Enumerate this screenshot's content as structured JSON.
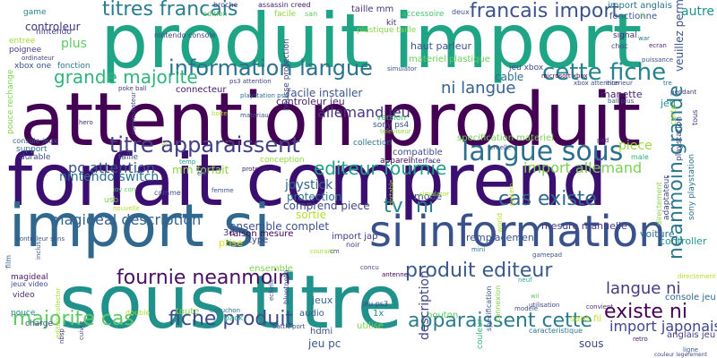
{
  "words": [
    {
      "text": "produit import",
      "color": "#20a486"
    },
    {
      "text": "attention produit",
      "color": "#440154"
    },
    {
      "text": "forfait comprend",
      "color": "#3b0f70"
    },
    {
      "text": "import si",
      "color": "#31688e"
    },
    {
      "text": "sous titre",
      "color": "#21918c"
    },
    {
      "text": "si information",
      "color": "#3a528b"
    },
    {
      "text": "information langue",
      "color": "#2c728e"
    },
    {
      "text": "titres francais",
      "color": "#287d8e"
    },
    {
      "text": "francais import",
      "color": "#3b528b"
    },
    {
      "text": "langue sous",
      "color": "#2e6e8e"
    },
    {
      "text": "titre apparaissent",
      "color": "#424086"
    },
    {
      "text": "cette fiche",
      "color": "#25838e"
    },
    {
      "text": "grande majorite",
      "color": "#2fb47c"
    },
    {
      "text": "ni langue",
      "color": "#355f8d"
    },
    {
      "text": "editeur fournie",
      "color": "#1fa088"
    },
    {
      "text": "neanmoin grande",
      "color": "#2a788e"
    },
    {
      "text": "allemand jeu",
      "color": "#46337e"
    },
    {
      "text": "fiche produit",
      "color": "#3e4989"
    },
    {
      "text": "majorite cas",
      "color": "#5ec962"
    },
    {
      "text": "apparaissent cette",
      "color": "#2a7b8e"
    },
    {
      "text": "produit editeur",
      "color": "#38598c"
    },
    {
      "text": "fournie neanmoin",
      "color": "#471063"
    },
    {
      "text": "cas existe",
      "color": "#31688e"
    },
    {
      "text": "existe ni",
      "color": "#440154"
    },
    {
      "text": "langue ni",
      "color": "#443983"
    },
    {
      "text": "import allemand",
      "color": "#7ad151"
    },
    {
      "text": "import japonais",
      "color": "#3f4788"
    },
    {
      "text": "magideal description",
      "color": "#33638d"
    },
    {
      "text": "pc attention",
      "color": "#3b528b"
    },
    {
      "text": "nintendo switch",
      "color": "#2d708e"
    },
    {
      "text": "mm forfait",
      "color": "#8fd744"
    },
    {
      "text": "joystick",
      "color": "#31688e"
    },
    {
      "text": "protection",
      "color": "#2c728e"
    },
    {
      "text": "comprend piece",
      "color": "#3e4a89"
    },
    {
      "text": "sortie",
      "color": "#b5de2b"
    },
    {
      "text": "ensemble complet",
      "color": "#3b528b"
    },
    {
      "text": "import jap",
      "color": "#453781"
    },
    {
      "text": "controleur",
      "color": "#46327e"
    },
    {
      "text": "nintendo",
      "color": "#414487"
    },
    {
      "text": "plus",
      "color": "#5ec962"
    },
    {
      "text": "entree",
      "color": "#a0da39"
    },
    {
      "text": "poignee",
      "color": "#443983"
    },
    {
      "text": "xbox one",
      "color": "#3a538b"
    },
    {
      "text": "fonction",
      "color": "#2a788e"
    },
    {
      "text": "cable",
      "color": "#2e6f8e"
    },
    {
      "text": "jeu xbox",
      "color": "#3f4889"
    },
    {
      "text": "connecteur",
      "color": "#481769"
    },
    {
      "text": "facile installer",
      "color": "#39568c"
    },
    {
      "text": "materiel plastique",
      "color": "#6ccd5a"
    },
    {
      "text": "haut parleur",
      "color": "#3a548c"
    },
    {
      "text": "plastique taille",
      "color": "#86d549"
    },
    {
      "text": "kit",
      "color": "#472c7a"
    },
    {
      "text": "taille mm",
      "color": "#46317e"
    },
    {
      "text": "assassin creed",
      "color": "#481b6d"
    },
    {
      "text": "accessoire",
      "color": "#4ac16d"
    },
    {
      "text": "facile",
      "color": "#8bd646"
    },
    {
      "text": "san",
      "color": "#5cc863"
    },
    {
      "text": "edition",
      "color": "#56c667"
    },
    {
      "text": "broche",
      "color": "#404588"
    },
    {
      "text": "game",
      "color": "#25848e"
    },
    {
      "text": "import anglais",
      "color": "#2c728e"
    },
    {
      "text": "fonctionne",
      "color": "#3b528b"
    },
    {
      "text": "jeu",
      "color": "#21908d"
    },
    {
      "text": "manette",
      "color": "#482475"
    },
    {
      "text": "piece",
      "color": "#9bd93c"
    },
    {
      "text": "specification materiel",
      "color": "#75d054"
    },
    {
      "text": "compatible",
      "color": "#3e4c8a"
    },
    {
      "text": "collection",
      "color": "#2e6f8e"
    },
    {
      "text": "version",
      "color": "#3fbc73"
    },
    {
      "text": "sony ps4",
      "color": "#3b528b"
    },
    {
      "text": "appareil",
      "color": "#440154"
    },
    {
      "text": "interface",
      "color": "#472d7b"
    },
    {
      "text": "taille",
      "color": "#3a548c"
    },
    {
      "text": "conception",
      "color": "#90d743"
    },
    {
      "text": "durable",
      "color": "#3f4889"
    },
    {
      "text": "support",
      "color": "#2a768e"
    },
    {
      "text": "console jeux",
      "color": "#365d8d"
    },
    {
      "text": "mesure manuelle",
      "color": "#453882"
    },
    {
      "text": "voiture",
      "color": "#2c718e"
    },
    {
      "text": "controller",
      "color": "#1f9a8a"
    },
    {
      "text": "remplacement",
      "color": "#3b528b"
    },
    {
      "text": "raison mesure",
      "color": "#440154"
    },
    {
      "text": "ensemble",
      "color": "#7fd34e"
    },
    {
      "text": "prise",
      "color": "#d8e219"
    },
    {
      "text": "type",
      "color": "#414487"
    },
    {
      "text": "3d",
      "color": "#443983"
    },
    {
      "text": "magideal",
      "color": "#481769"
    },
    {
      "text": "jeux video",
      "color": "#3c508b"
    },
    {
      "text": "video",
      "color": "#472c7a"
    },
    {
      "text": "pouce",
      "color": "#24868e"
    },
    {
      "text": "charge",
      "color": "#3b528b"
    },
    {
      "text": "jeux",
      "color": "#31688e"
    },
    {
      "text": "controleur jeu",
      "color": "#481f70"
    },
    {
      "text": "audio",
      "color": "#3a548c"
    },
    {
      "text": "1x",
      "color": "#25858e"
    },
    {
      "text": "hdmi",
      "color": "#3e4a89"
    },
    {
      "text": "utilise",
      "color": "#7ad151"
    },
    {
      "text": "usb",
      "color": "#5ec962"
    },
    {
      "text": "bouton",
      "color": "#414487"
    },
    {
      "text": "description",
      "color": "#38598c"
    },
    {
      "text": "jeu pc",
      "color": "#3f4788"
    },
    {
      "text": "sous",
      "color": "#287c8e"
    },
    {
      "text": "ni",
      "color": "#23898e"
    },
    {
      "text": "tv",
      "color": "#3b528b"
    },
    {
      "text": "mode",
      "color": "#29af7f"
    },
    {
      "text": "pack",
      "color": "#84d44b"
    },
    {
      "text": "toute",
      "color": "#a5db36"
    },
    {
      "text": "double",
      "color": "#c2df23"
    },
    {
      "text": "sans fil",
      "color": "#453882"
    },
    {
      "text": "anglais jeu",
      "color": "#31688e"
    },
    {
      "text": "console jeu",
      "color": "#3e4989"
    },
    {
      "text": "jeu ps3",
      "color": "#2a788e"
    },
    {
      "text": "caracteristique",
      "color": "#3b528b"
    },
    {
      "text": "convient",
      "color": "#46327e"
    },
    {
      "text": "neuf",
      "color": "#27ad81"
    },
    {
      "text": "retro",
      "color": "#482071"
    },
    {
      "text": "ligne",
      "color": "#3a548c"
    },
    {
      "text": "playstation",
      "color": "#3e4989"
    },
    {
      "text": "sony playstation",
      "color": "#2c728e"
    },
    {
      "text": "adaptateur",
      "color": "#3f4788"
    },
    {
      "text": "couleur",
      "color": "#35b779"
    },
    {
      "text": "carte",
      "color": "#9bd93c"
    },
    {
      "text": "tous",
      "color": "#46307e"
    },
    {
      "text": "ecran",
      "color": "#3e4c8a"
    },
    {
      "text": "war",
      "color": "#482374"
    },
    {
      "text": "choc",
      "color": "#2a788e"
    },
    {
      "text": "signal",
      "color": "#414487"
    },
    {
      "text": "autre",
      "color": "#472c7a"
    },
    {
      "text": "ii",
      "color": "#21908d"
    },
    {
      "text": "puissance",
      "color": "#6ccd5a"
    },
    {
      "text": "xbox attention",
      "color": "#3b528b"
    },
    {
      "text": "microsoft xbox",
      "color": "#3e4a89"
    },
    {
      "text": "interieur",
      "color": "#440154"
    },
    {
      "text": "tre",
      "color": "#3f4788"
    },
    {
      "text": "pendant",
      "color": "#2c728e"
    },
    {
      "text": "ball plus",
      "color": "#46307e"
    },
    {
      "text": "pad",
      "color": "#365c8d"
    },
    {
      "text": "male",
      "color": "#453581"
    },
    {
      "text": "femelle",
      "color": "#29af7f"
    },
    {
      "text": "televiseur",
      "color": "#3b528b"
    },
    {
      "text": "poke ball",
      "color": "#8bd646"
    },
    {
      "text": "ps3 attention",
      "color": "#453882"
    },
    {
      "text": "playstation ps4",
      "color": "#414487"
    },
    {
      "text": "materiau",
      "color": "#2e6e8e"
    },
    {
      "text": "boite",
      "color": "#3b528b"
    },
    {
      "text": "hero",
      "color": "#b5de2b"
    },
    {
      "text": "protegez",
      "color": "#472d7b"
    },
    {
      "text": "temp",
      "color": "#481769"
    },
    {
      "text": "comme",
      "color": "#1f9e89"
    },
    {
      "text": "joy con",
      "color": "#3e4c8a"
    },
    {
      "text": "nouvelle",
      "color": "#5ec962"
    },
    {
      "text": "femme",
      "color": "#b5de2b"
    },
    {
      "text": "vi",
      "color": "#3b528b"
    },
    {
      "text": "etc",
      "color": "#a2da37"
    },
    {
      "text": "controleur sans",
      "color": "#404688"
    },
    {
      "text": "ordinateur",
      "color": "#3b528b"
    },
    {
      "text": "nintendo console",
      "color": "#424086"
    },
    {
      "text": "deux",
      "color": "#414487"
    },
    {
      "text": "wii",
      "color": "#3b528b"
    },
    {
      "text": "system",
      "color": "#287d8e"
    },
    {
      "text": "simulator",
      "color": "#3b528b"
    },
    {
      "text": "mini",
      "color": "#5ec962"
    },
    {
      "text": "portable",
      "color": "#b5de2b"
    },
    {
      "text": "gamepad",
      "color": "#a5db36"
    },
    {
      "text": "antenne",
      "color": "#2c728e"
    },
    {
      "text": "concu",
      "color": "#9bd93c"
    },
    {
      "text": "courant",
      "color": "#3b528b"
    },
    {
      "text": "cm",
      "color": "#440154"
    },
    {
      "text": "noir",
      "color": "#3e4a89"
    },
    {
      "text": "echelle",
      "color": "#a0da39"
    },
    {
      "text": "capuchon",
      "color": "#3b528b"
    },
    {
      "text": "battle",
      "color": "#453781"
    },
    {
      "text": "port",
      "color": "#3b528b"
    },
    {
      "text": "nbsp",
      "color": "#2c728e"
    },
    {
      "text": "modele",
      "color": "#414487"
    },
    {
      "text": "utilisation",
      "color": "#3e4989"
    },
    {
      "text": "inclus",
      "color": "#472c7a"
    },
    {
      "text": "film",
      "color": "#3b528b"
    },
    {
      "text": "cuivre",
      "color": "#414487"
    },
    {
      "text": "edition collector",
      "color": "#3b528b"
    },
    {
      "text": "commutateur",
      "color": "#365d8d"
    },
    {
      "text": "housse protection",
      "color": "#3e4c8a"
    },
    {
      "text": "pouce rechange",
      "color": "#a0da39"
    },
    {
      "text": "bluetooth",
      "color": "#3f4788"
    },
    {
      "text": "world",
      "color": "#414487"
    },
    {
      "text": "specification",
      "color": "#7fd34e"
    },
    {
      "text": "connexion",
      "color": "#3e4989"
    },
    {
      "text": "directement",
      "color": "#b5de2b"
    },
    {
      "text": "veuillez permettre",
      "color": "#3b528b"
    },
    {
      "text": "couleur legerement",
      "color": "#7fd34e"
    },
    {
      "text": "legerement differente",
      "color": "#86d549"
    },
    {
      "text": "ecran",
      "color": "#3b528b"
    },
    {
      "text": "action",
      "color": "#b5de2b"
    },
    {
      "text": "ancien",
      "color": "#7fd34e"
    },
    {
      "text": "compatibilite",
      "color": "#414487"
    }
  ]
}
